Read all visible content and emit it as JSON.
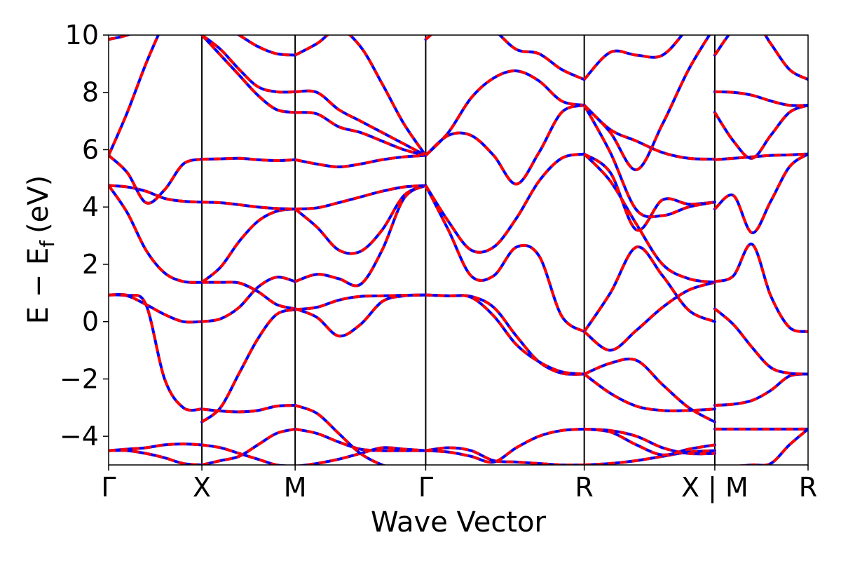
{
  "chart_data": {
    "type": "line",
    "title": "",
    "xlabel": "Wave Vector",
    "ylabel": "E − E",
    "ylabel_subscript": "f",
    "ylabel_unit": "(eV)",
    "ylim": [
      -5,
      10
    ],
    "yticks": [
      -4,
      -2,
      0,
      2,
      4,
      6,
      8,
      10
    ],
    "ytick_labels": [
      "−4",
      "−2",
      "0",
      "2",
      "4",
      "6",
      "8",
      "10"
    ],
    "xlim": [
      0,
      7.5
    ],
    "kpoints": [
      {
        "label": "Γ",
        "x": 0
      },
      {
        "label": "X",
        "x": 1.0
      },
      {
        "label": "M",
        "x": 2.0
      },
      {
        "label": "Γ",
        "x": 3.4
      },
      {
        "label": "R",
        "x": 5.1
      },
      {
        "label": "X | M",
        "x": 6.5
      },
      {
        "label": "R",
        "x": 7.5
      }
    ],
    "segments": [
      {
        "from": "Γ",
        "to": "X",
        "x_range": [
          0,
          1.0
        ],
        "bands": [
          [
            -4.5,
            -4.45,
            -4.4,
            -4.3,
            -4.27,
            -4.3
          ],
          [
            -4.5,
            -4.5,
            -4.6,
            -4.75,
            -4.95,
            -5.0
          ],
          [
            0.93,
            0.92,
            0.6,
            -2.0,
            -3.0,
            -3.05
          ],
          [
            0.93,
            0.9,
            0.6,
            0.25,
            0.0,
            0.0
          ],
          [
            4.75,
            4.7,
            4.55,
            4.3,
            4.2,
            4.17
          ],
          [
            4.75,
            3.8,
            2.5,
            1.7,
            1.4,
            1.37
          ],
          [
            5.8,
            5.2,
            4.15,
            4.6,
            5.5,
            5.67
          ],
          [
            5.8,
            7.3,
            9.0,
            10.5,
            12.0,
            13.0
          ],
          [
            9.85,
            10.0,
            10.3,
            10.8,
            11.5,
            12.0
          ]
        ]
      },
      {
        "from": "X",
        "to": "M",
        "x_range": [
          1.0,
          2.0
        ],
        "bands": [
          [
            -5.0,
            -4.85,
            -4.7,
            -4.3,
            -3.9,
            -3.75
          ],
          [
            -4.3,
            -4.4,
            -4.6,
            -4.8,
            -5.0,
            -5.05
          ],
          [
            -3.5,
            -3.0,
            -1.8,
            -0.6,
            0.25,
            0.42
          ],
          [
            -3.05,
            -3.12,
            -3.15,
            -3.1,
            -2.95,
            -2.92
          ],
          [
            0.0,
            0.1,
            0.5,
            1.2,
            1.55,
            1.4
          ],
          [
            1.37,
            1.37,
            1.35,
            1.05,
            0.6,
            0.45
          ],
          [
            1.37,
            1.9,
            2.8,
            3.5,
            3.85,
            3.93
          ],
          [
            4.17,
            4.15,
            4.08,
            4.0,
            3.95,
            3.93
          ],
          [
            5.67,
            5.68,
            5.7,
            5.65,
            5.62,
            5.65
          ],
          [
            10.0,
            9.3,
            8.6,
            7.9,
            7.4,
            7.3
          ],
          [
            10.0,
            9.5,
            8.8,
            8.2,
            8.02,
            8.02
          ],
          [
            11.0,
            10.4,
            10.0,
            9.6,
            9.35,
            9.3
          ]
        ]
      },
      {
        "from": "M",
        "to": "Γ",
        "x_range": [
          2.0,
          3.4
        ],
        "bands": [
          [
            -3.75,
            -3.9,
            -4.2,
            -4.45,
            -4.5,
            -4.5,
            -4.5
          ],
          [
            -5.05,
            -4.95,
            -4.8,
            -4.6,
            -4.4,
            -4.45,
            -4.5
          ],
          [
            -2.92,
            -3.2,
            -3.9,
            -4.6,
            -5.0,
            -5.2,
            -5.3
          ],
          [
            0.45,
            0.15,
            -0.5,
            -0.1,
            0.7,
            0.9,
            0.93
          ],
          [
            0.42,
            0.5,
            0.75,
            0.88,
            0.9,
            0.92,
            0.93
          ],
          [
            1.4,
            1.65,
            1.5,
            1.3,
            2.5,
            4.3,
            4.75
          ],
          [
            3.93,
            3.3,
            2.5,
            2.45,
            3.2,
            4.4,
            4.75
          ],
          [
            3.93,
            3.97,
            4.15,
            4.35,
            4.55,
            4.7,
            4.75
          ],
          [
            5.65,
            5.5,
            5.4,
            5.5,
            5.65,
            5.75,
            5.8
          ],
          [
            7.3,
            7.25,
            6.8,
            6.6,
            6.3,
            6.0,
            5.8
          ],
          [
            8.02,
            8.0,
            7.4,
            7.0,
            6.6,
            6.2,
            5.8
          ],
          [
            9.3,
            9.7,
            10.2,
            9.6,
            8.3,
            6.9,
            5.8
          ]
        ]
      },
      {
        "from": "Γ",
        "to": "R",
        "x_range": [
          3.4,
          5.1
        ],
        "bands": [
          [
            -4.5,
            -4.4,
            -4.5,
            -4.85,
            -4.9,
            -4.95,
            -5.0,
            -5.0
          ],
          [
            -4.5,
            -4.55,
            -4.7,
            -4.9,
            -4.4,
            -4.0,
            -3.8,
            -3.75
          ],
          [
            0.93,
            0.9,
            0.88,
            0.5,
            -0.5,
            -1.4,
            -1.8,
            -1.83
          ],
          [
            0.93,
            0.9,
            0.85,
            0.2,
            -0.8,
            -1.4,
            -1.75,
            -1.83
          ],
          [
            4.75,
            3.2,
            1.6,
            1.6,
            2.6,
            2.3,
            0.2,
            -0.35
          ],
          [
            4.75,
            3.5,
            2.5,
            2.6,
            3.6,
            4.9,
            5.7,
            5.85
          ],
          [
            5.8,
            6.5,
            6.5,
            5.8,
            4.8,
            5.9,
            7.3,
            7.55
          ],
          [
            5.8,
            6.6,
            7.8,
            8.5,
            8.75,
            8.4,
            7.7,
            7.55
          ],
          [
            9.85,
            10.5,
            10.8,
            10.2,
            9.5,
            9.35,
            8.8,
            8.45
          ]
        ]
      },
      {
        "from": "R",
        "to": "X",
        "x_range": [
          5.1,
          6.5
        ],
        "bands": [
          [
            -5.0,
            -4.95,
            -4.85,
            -4.7,
            -4.55,
            -4.5
          ],
          [
            -3.75,
            -3.8,
            -4.0,
            -4.4,
            -4.6,
            -4.6
          ],
          [
            -3.75,
            -3.85,
            -4.3,
            -4.65,
            -4.45,
            -4.3
          ],
          [
            -1.83,
            -2.5,
            -2.95,
            -3.1,
            -3.1,
            -3.05
          ],
          [
            -1.83,
            -1.45,
            -1.35,
            -2.2,
            -3.0,
            -3.5
          ],
          [
            -0.35,
            1.0,
            2.6,
            1.6,
            0.4,
            0.0
          ],
          [
            -0.35,
            -1.0,
            -0.3,
            0.5,
            1.1,
            1.37
          ],
          [
            5.85,
            4.9,
            3.4,
            2.0,
            1.5,
            1.37
          ],
          [
            5.85,
            5.2,
            3.2,
            4.25,
            4.1,
            4.17
          ],
          [
            7.55,
            5.9,
            3.9,
            3.7,
            4.0,
            4.17
          ],
          [
            7.55,
            6.7,
            6.3,
            5.9,
            5.7,
            5.67
          ],
          [
            7.55,
            6.6,
            5.3,
            6.9,
            8.8,
            10.3
          ],
          [
            8.45,
            9.4,
            9.3,
            9.3,
            10.3,
            11.5
          ]
        ]
      },
      {
        "from": "M",
        "to": "R",
        "x_range": [
          6.5,
          7.5
        ],
        "bands": [
          [
            -3.75,
            -3.75,
            -3.75,
            -3.75,
            -3.75,
            -3.75
          ],
          [
            -5.05,
            -5.05,
            -5.0,
            -4.95,
            -4.3,
            -3.75
          ],
          [
            -2.92,
            -2.88,
            -2.75,
            -2.4,
            -1.9,
            -1.83
          ],
          [
            0.45,
            -0.1,
            -0.9,
            -1.6,
            -1.8,
            -1.83
          ],
          [
            1.4,
            1.6,
            2.7,
            0.9,
            -0.2,
            -0.35
          ],
          [
            3.93,
            4.4,
            3.1,
            4.2,
            5.4,
            5.85
          ],
          [
            5.65,
            5.7,
            5.75,
            5.8,
            5.82,
            5.85
          ],
          [
            7.3,
            6.3,
            5.7,
            6.5,
            7.3,
            7.55
          ],
          [
            8.02,
            8.0,
            7.9,
            7.7,
            7.55,
            7.55
          ],
          [
            9.3,
            10.2,
            10.6,
            9.7,
            8.8,
            8.45
          ]
        ]
      }
    ],
    "series": [
      {
        "name": "",
        "color": "#0000ff",
        "style": "dashed"
      },
      {
        "name": "",
        "color": "#ff0000",
        "style": "solid"
      }
    ],
    "grid": false,
    "legend": "none"
  },
  "colors": {
    "spin_up": "#0000ff",
    "spin_down": "#ff0000",
    "axes": "#000000"
  }
}
